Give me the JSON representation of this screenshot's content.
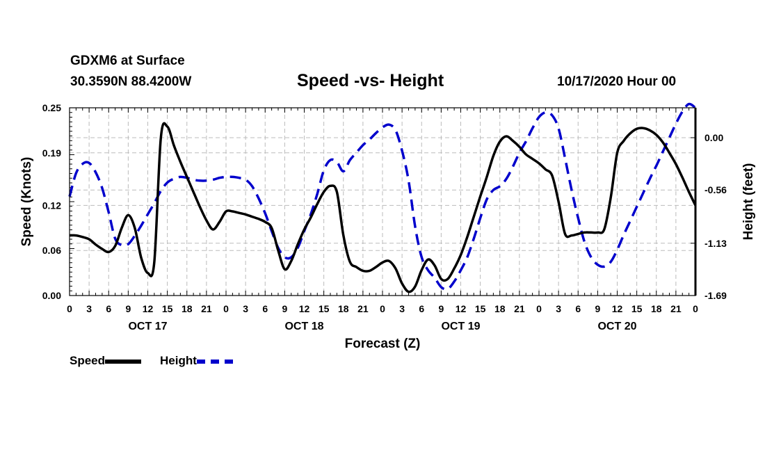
{
  "header": {
    "station": "GDXM6 at Surface",
    "coords": "30.3590N 88.4200W",
    "title": "Speed -vs- Height",
    "run": "10/17/2020 Hour 00"
  },
  "legend": {
    "speed_label": "Speed",
    "height_label": "Height"
  },
  "colors": {
    "speed": "#000000",
    "height": "#0000cc",
    "grid": "#bbbbbb"
  },
  "chart_data": {
    "type": "line",
    "title": "Speed -vs- Height",
    "xlabel": "Forecast (Z)",
    "ylabel": "Speed (Knots)",
    "y2label": "Height (feet)",
    "xlim": [
      0,
      96
    ],
    "ylim": [
      0,
      0.25
    ],
    "y2lim": [
      -1.69,
      0.32
    ],
    "yticks": [
      "0.00",
      "0.06",
      "0.12",
      "0.19",
      "0.25"
    ],
    "y2ticks": [
      "-1.69",
      "-1.13",
      "-0.56",
      "0.00"
    ],
    "xtick_labels": [
      "0",
      "3",
      "6",
      "9",
      "12",
      "15",
      "18",
      "21",
      "0",
      "3",
      "6",
      "9",
      "12",
      "15",
      "18",
      "21",
      "0",
      "3",
      "6",
      "9",
      "12",
      "15",
      "18",
      "21",
      "0",
      "3",
      "6",
      "9",
      "12",
      "15",
      "18",
      "21",
      "0"
    ],
    "day_labels": [
      {
        "label": "OCT 17",
        "hour": 12
      },
      {
        "label": "OCT 18",
        "hour": 36
      },
      {
        "label": "OCT 19",
        "hour": 60
      },
      {
        "label": "OCT 20",
        "hour": 84
      }
    ],
    "series": [
      {
        "name": "Speed",
        "axis": "left",
        "x": [
          0,
          1,
          2,
          3,
          4,
          5,
          6,
          7,
          8,
          9,
          10,
          11,
          12,
          13,
          14,
          15,
          16,
          17,
          18,
          19,
          20,
          21,
          22,
          23,
          24,
          25,
          26,
          27,
          28,
          29,
          30,
          31,
          32,
          33,
          34,
          35,
          36,
          37,
          38,
          39,
          40,
          41,
          42,
          43,
          44,
          45,
          46,
          47,
          48,
          49,
          50,
          51,
          52,
          53,
          54,
          55,
          56,
          57,
          58,
          59,
          60,
          61,
          62,
          63,
          64,
          65,
          66,
          67,
          68,
          69,
          70,
          71,
          72,
          73,
          74,
          75,
          76,
          77,
          78,
          79,
          80,
          81,
          82,
          83,
          84,
          85,
          86,
          87,
          88,
          89,
          90,
          91,
          92,
          93,
          94,
          95,
          96
        ],
        "values": [
          0.08,
          0.08,
          0.078,
          0.075,
          0.068,
          0.062,
          0.058,
          0.066,
          0.09,
          0.107,
          0.09,
          0.05,
          0.03,
          0.045,
          0.21,
          0.225,
          0.2,
          0.178,
          0.158,
          0.138,
          0.118,
          0.1,
          0.088,
          0.098,
          0.112,
          0.112,
          0.11,
          0.108,
          0.105,
          0.102,
          0.098,
          0.09,
          0.06,
          0.035,
          0.046,
          0.068,
          0.088,
          0.104,
          0.122,
          0.138,
          0.146,
          0.138,
          0.08,
          0.045,
          0.038,
          0.033,
          0.033,
          0.038,
          0.044,
          0.046,
          0.036,
          0.016,
          0.005,
          0.012,
          0.034,
          0.048,
          0.04,
          0.022,
          0.022,
          0.036,
          0.054,
          0.078,
          0.105,
          0.132,
          0.158,
          0.186,
          0.205,
          0.212,
          0.206,
          0.198,
          0.188,
          0.182,
          0.176,
          0.168,
          0.16,
          0.125,
          0.082,
          0.08,
          0.082,
          0.084,
          0.084,
          0.084,
          0.088,
          0.13,
          0.19,
          0.206,
          0.216,
          0.222,
          0.223,
          0.22,
          0.214,
          0.204,
          0.19,
          0.175,
          0.157,
          0.138,
          0.12
        ]
      },
      {
        "name": "Height",
        "axis": "right",
        "x": [
          0,
          1,
          2,
          3,
          4,
          5,
          6,
          7,
          8,
          9,
          10,
          11,
          12,
          13,
          14,
          15,
          16,
          17,
          18,
          19,
          20,
          21,
          22,
          23,
          24,
          25,
          26,
          27,
          28,
          29,
          30,
          31,
          32,
          33,
          34,
          35,
          36,
          37,
          38,
          39,
          40,
          41,
          42,
          43,
          44,
          45,
          46,
          47,
          48,
          49,
          50,
          51,
          52,
          53,
          54,
          55,
          56,
          57,
          58,
          59,
          60,
          61,
          62,
          63,
          64,
          65,
          66,
          67,
          68,
          69,
          70,
          71,
          72,
          73,
          74,
          75,
          76,
          77,
          78,
          79,
          80,
          81,
          82,
          83,
          84,
          85,
          86,
          87,
          88,
          89,
          90,
          91,
          92,
          93,
          94,
          95,
          96
        ],
        "values": [
          -0.63,
          -0.38,
          -0.28,
          -0.27,
          -0.37,
          -0.54,
          -0.8,
          -1.08,
          -1.15,
          -1.14,
          -1.05,
          -0.94,
          -0.82,
          -0.7,
          -0.57,
          -0.48,
          -0.44,
          -0.42,
          -0.43,
          -0.45,
          -0.46,
          -0.46,
          -0.45,
          -0.43,
          -0.42,
          -0.42,
          -0.43,
          -0.45,
          -0.52,
          -0.65,
          -0.81,
          -1.0,
          -1.18,
          -1.28,
          -1.28,
          -1.18,
          -1.0,
          -0.82,
          -0.6,
          -0.35,
          -0.24,
          -0.26,
          -0.36,
          -0.24,
          -0.16,
          -0.08,
          -0.02,
          0.05,
          0.11,
          0.14,
          0.08,
          -0.14,
          -0.46,
          -0.95,
          -1.28,
          -1.42,
          -1.5,
          -1.6,
          -1.62,
          -1.54,
          -1.42,
          -1.28,
          -1.08,
          -0.86,
          -0.66,
          -0.56,
          -0.52,
          -0.44,
          -0.31,
          -0.16,
          -0.04,
          0.1,
          0.22,
          0.27,
          0.24,
          0.1,
          -0.22,
          -0.56,
          -0.86,
          -1.12,
          -1.28,
          -1.36,
          -1.38,
          -1.33,
          -1.2,
          -1.04,
          -0.89,
          -0.74,
          -0.59,
          -0.44,
          -0.3,
          -0.15,
          0.0,
          0.15,
          0.28,
          0.36,
          0.32
        ]
      }
    ]
  }
}
